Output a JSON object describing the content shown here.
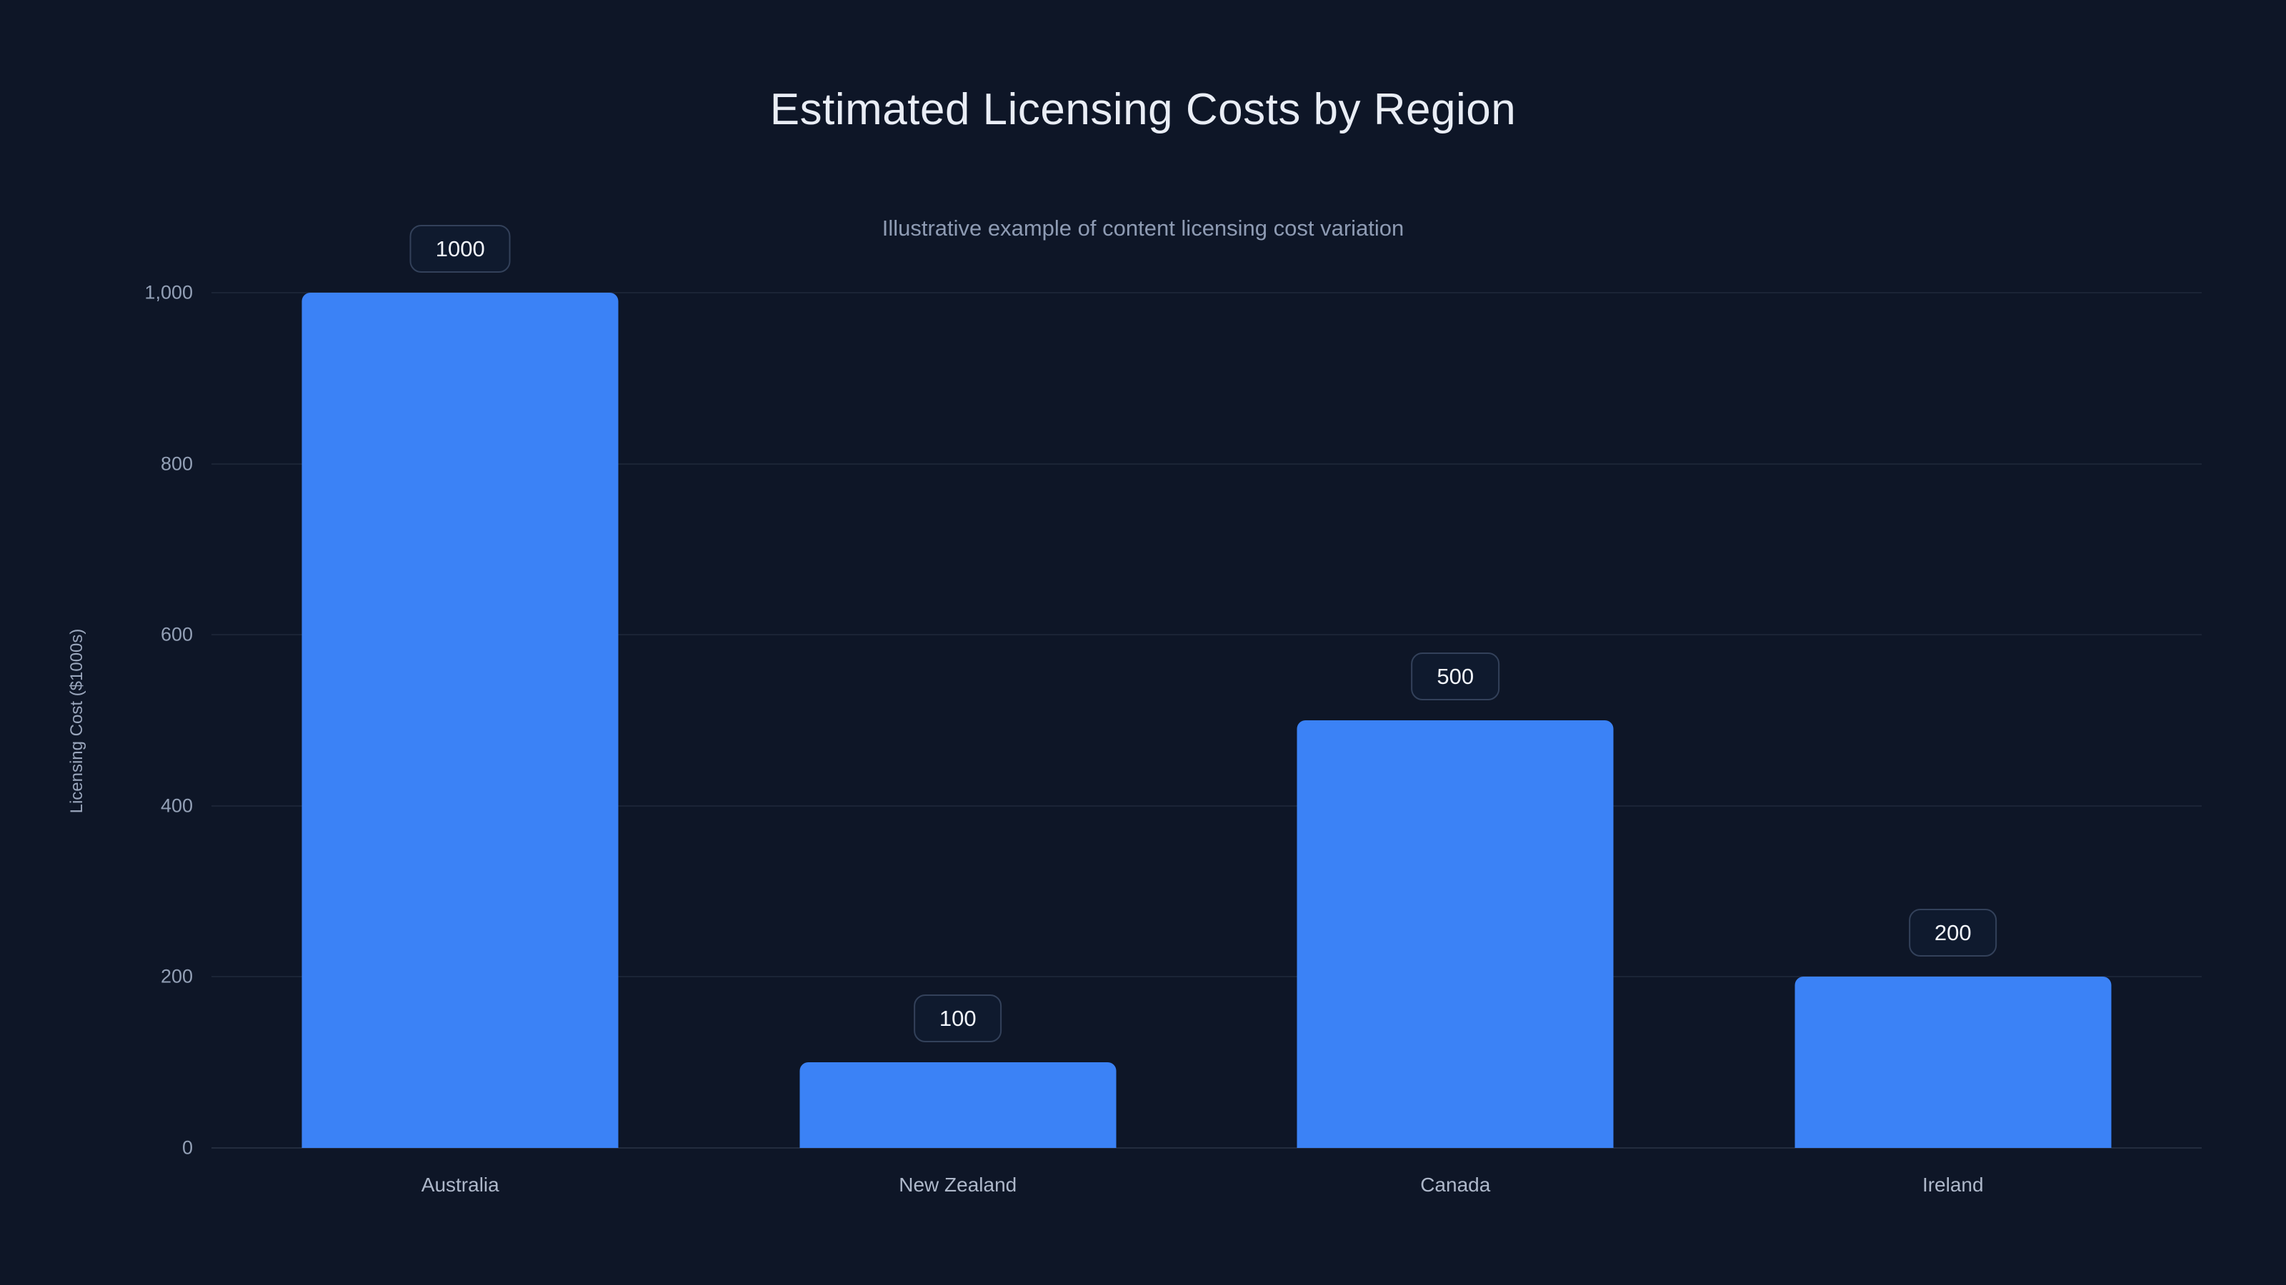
{
  "chart_data": {
    "type": "bar",
    "title": "Estimated Licensing Costs by Region",
    "subtitle": "Illustrative example of content licensing cost variation",
    "ylabel": "Licensing Cost ($1000s)",
    "xlabel": "",
    "categories": [
      "Australia",
      "New Zealand",
      "Canada",
      "Ireland"
    ],
    "values": [
      1000,
      100,
      500,
      200
    ],
    "value_labels": [
      "1000",
      "100",
      "500",
      "200"
    ],
    "ylim": [
      0,
      1000
    ],
    "yticks": [
      {
        "value": 0,
        "label": "0"
      },
      {
        "value": 200,
        "label": "200"
      },
      {
        "value": 400,
        "label": "400"
      },
      {
        "value": 600,
        "label": "600"
      },
      {
        "value": 800,
        "label": "800"
      },
      {
        "value": 1000,
        "label": "1,000"
      }
    ],
    "grid": true,
    "legend": false,
    "colors": {
      "background": "#0e1627",
      "bar": "#3b82f6",
      "title_text": "#e9edf5",
      "subtitle_text": "#8e9bb3",
      "axis_text": "#93a0b6",
      "gridline": "rgba(148,163,184,0.10)",
      "badge_border": "#33415a",
      "badge_text": "#f3f6fb"
    }
  }
}
